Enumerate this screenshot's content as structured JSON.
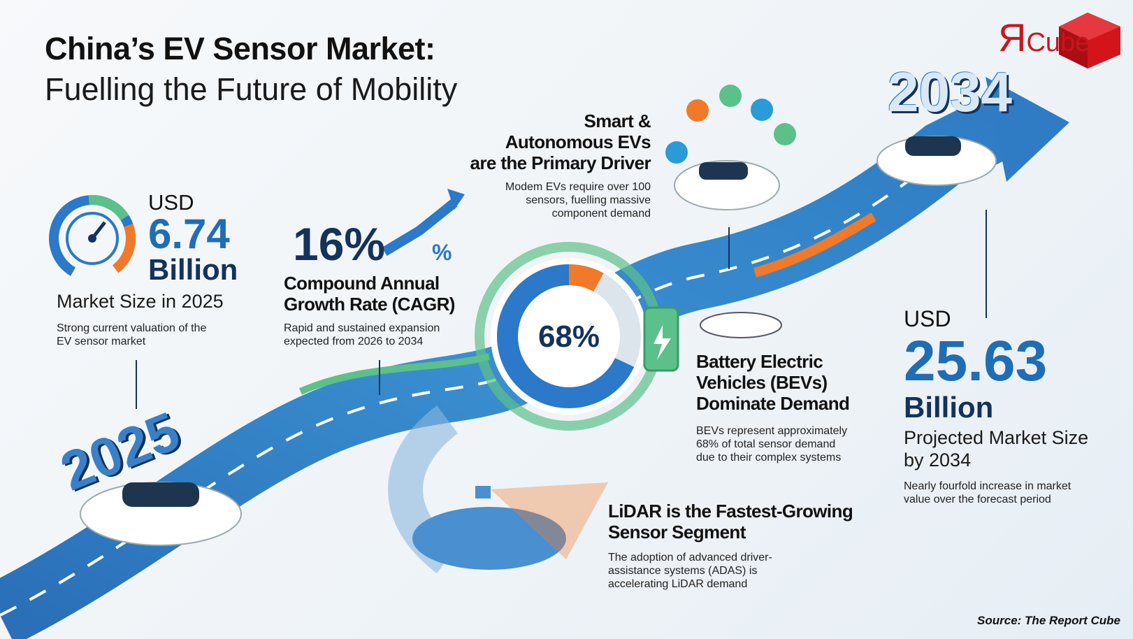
{
  "title": {
    "line1": "China’s EV Sensor Market:",
    "line2": "Fuelling the Future of Mobility"
  },
  "logo": {
    "text_r": "Я",
    "text": "Cube",
    "color": "#c8161d"
  },
  "market_2025": {
    "currency": "USD",
    "value": "6.74",
    "unit": "Billion",
    "label": "Market Size in 2025",
    "description": "Strong current valuation of the EV sensor market"
  },
  "cagr": {
    "value": "16%",
    "percent_symbol": "%",
    "label_line1": "Compound Annual",
    "label_line2": "Growth Rate (CAGR)",
    "description": "Rapid and sustained expansion expected from 2026 to 2034"
  },
  "smart_evs": {
    "line1": "Smart &",
    "line2": "Autonomous EVs",
    "line3": "are the Primary Driver",
    "description": "Modem EVs require over 100 sensors, fuelling massive component demand"
  },
  "bev_share": {
    "value": "68%",
    "fraction": 0.68
  },
  "bev": {
    "line1": "Battery Electric",
    "line2": "Vehicles (BEVs)",
    "line3": "Dominate Demand",
    "description": "BEVs represent approximately 68% of total sensor demand due to their complex systems"
  },
  "lidar": {
    "line1": "LiDAR is the Fastest-Growing",
    "line2": "Sensor Segment",
    "description": "The adoption of advanced driver-assistance systems (ADAS) is accelerating LiDAR demand"
  },
  "market_2034": {
    "currency": "USD",
    "value": "25.63",
    "unit": "Billion",
    "label_line1": "Projected Market Size",
    "label_line2": "by 2034",
    "description": "Nearly fourfold increase in market value over the forecast period"
  },
  "years": {
    "start": "2025",
    "end": "2034"
  },
  "source": "Source: The Report Cube",
  "colors": {
    "blue": "#1f6db5",
    "navy": "#14325a",
    "orange": "#f07a2a",
    "green": "#5cc08a"
  }
}
